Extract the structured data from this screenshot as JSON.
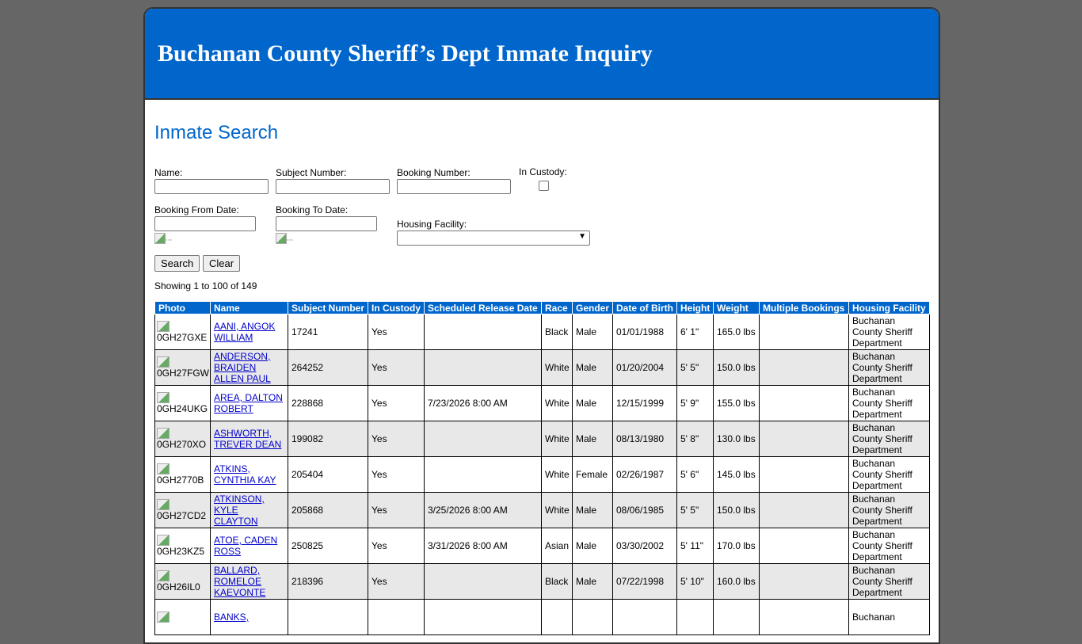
{
  "header": {
    "title": "Buchanan County Sheriff’s Dept Inmate Inquiry"
  },
  "page_title": "Inmate Search",
  "form": {
    "name_label": "Name:",
    "name_value": "",
    "subject_label": "Subject Number:",
    "subject_value": "",
    "booking_label": "Booking Number:",
    "booking_value": "",
    "custody_label": "In Custody:",
    "custody_checked": false,
    "from_label": "Booking From Date:",
    "from_value": "",
    "to_label": "Booking To Date:",
    "to_value": "",
    "calendar_alt": "...",
    "facility_label": "Housing Facility:",
    "facility_value": "",
    "search_label": "Search",
    "clear_label": "Clear"
  },
  "results_summary": "Showing 1 to 100 of 149",
  "colors": {
    "brand": "#0066cc",
    "background": "#666666",
    "row_alt": "#e8e8e8"
  },
  "table": {
    "columns": [
      "Photo",
      "Name",
      "Subject Number",
      "In Custody",
      "Scheduled Release Date",
      "Race",
      "Gender",
      "Date of Birth",
      "Height",
      "Weight",
      "Multiple Bookings",
      "Housing Facility"
    ],
    "rows": [
      [
        "0GH27GXE",
        "AANI, ANGOK WILLIAM",
        "17241",
        "Yes",
        "",
        "Black",
        "Male",
        "01/01/1988",
        "6' 1\"",
        "165.0 lbs",
        "",
        "Buchanan County Sheriff Department"
      ],
      [
        "0GH27FGW",
        "ANDERSON, BRAIDEN ALLEN PAUL",
        "264252",
        "Yes",
        "",
        "White",
        "Male",
        "01/20/2004",
        "5' 5\"",
        "150.0 lbs",
        "",
        "Buchanan County Sheriff Department"
      ],
      [
        "0GH24UKG",
        "AREA, DALTON ROBERT",
        "228868",
        "Yes",
        "7/23/2026 8:00 AM",
        "White",
        "Male",
        "12/15/1999",
        "5' 9\"",
        "155.0 lbs",
        "",
        "Buchanan County Sheriff Department"
      ],
      [
        "0GH270XO",
        "ASHWORTH, TREVER DEAN",
        "199082",
        "Yes",
        "",
        "White",
        "Male",
        "08/13/1980",
        "5' 8\"",
        "130.0 lbs",
        "",
        "Buchanan County Sheriff Department"
      ],
      [
        "0GH2770B",
        "ATKINS, CYNTHIA KAY",
        "205404",
        "Yes",
        "",
        "White",
        "Female",
        "02/26/1987",
        "5' 6\"",
        "145.0 lbs",
        "",
        "Buchanan County Sheriff Department"
      ],
      [
        "0GH27CD2",
        "ATKINSON, KYLE CLAYTON",
        "205868",
        "Yes",
        "3/25/2026 8:00 AM",
        "White",
        "Male",
        "08/06/1985",
        "5' 5\"",
        "150.0 lbs",
        "",
        "Buchanan County Sheriff Department"
      ],
      [
        "0GH23KZ5",
        "ATOE, CADEN ROSS",
        "250825",
        "Yes",
        "3/31/2026 8:00 AM",
        "Asian",
        "Male",
        "03/30/2002",
        "5' 11\"",
        "170.0 lbs",
        "",
        "Buchanan County Sheriff Department"
      ],
      [
        "0GH26IL0",
        "BALLARD, ROMELOE KAEVONTE",
        "218396",
        "Yes",
        "",
        "Black",
        "Male",
        "07/22/1998",
        "5' 10\"",
        "160.0 lbs",
        "",
        "Buchanan County Sheriff Department"
      ],
      [
        "",
        "BANKS,",
        "",
        "",
        "",
        "",
        "",
        "",
        "",
        "",
        "",
        "Buchanan"
      ]
    ]
  }
}
